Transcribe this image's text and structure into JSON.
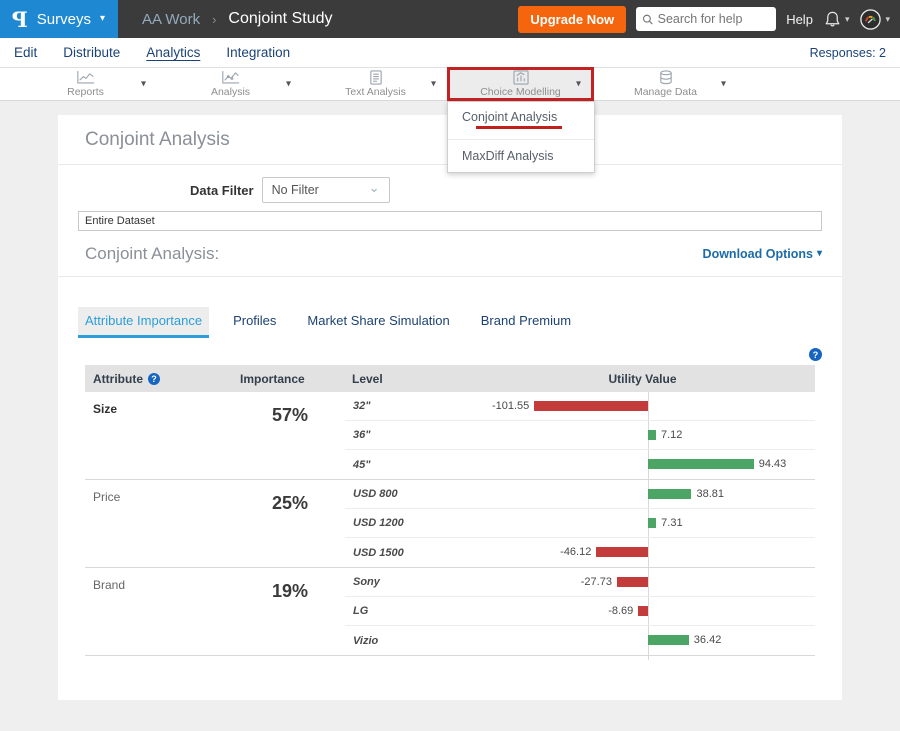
{
  "topbar": {
    "logo_text": "P",
    "product_label": "Surveys",
    "workspace": "AA Work",
    "breadcrumb_sep": "›",
    "study_title": "Conjoint Study",
    "upgrade_button": "Upgrade Now",
    "search_placeholder": "Search for help",
    "help_label": "Help",
    "brand_blue": "#1e88d2",
    "bar_bg": "#3b3b3b",
    "upgrade_orange": "#f4650e"
  },
  "nav": {
    "items": [
      "Edit",
      "Distribute",
      "Analytics",
      "Integration"
    ],
    "active_item": "Analytics",
    "responses_label": "Responses: 2"
  },
  "toolbar": {
    "items": [
      {
        "label": "Reports",
        "icon": "line-chart-icon"
      },
      {
        "label": "Analysis",
        "icon": "scatter-chart-icon"
      },
      {
        "label": "Text Analysis",
        "icon": "document-icon"
      },
      {
        "label": "Choice Modelling",
        "icon": "choice-chart-icon",
        "highlighted": true
      },
      {
        "label": "Manage Data",
        "icon": "database-icon"
      }
    ],
    "highlight_color": "#c32222"
  },
  "choice_menu": {
    "items": [
      {
        "label": "Conjoint Analysis",
        "underlined": true
      },
      {
        "label": "MaxDiff Analysis"
      }
    ],
    "underline_color": "#c0211c"
  },
  "content": {
    "page_heading": "Conjoint Analysis",
    "data_filter_label": "Data Filter",
    "data_filter_value": "No Filter",
    "dataset_bar": "Entire Dataset",
    "section_heading": "Conjoint Analysis:",
    "download_options": "Download Options",
    "tabs": [
      "Attribute Importance",
      "Profiles",
      "Market Share Simulation",
      "Brand Premium"
    ],
    "active_tab": "Attribute Importance"
  },
  "chart_data": {
    "type": "bar",
    "orientation": "horizontal",
    "zero_centered_axis": true,
    "title": "Attribute Importance",
    "columns": [
      "Attribute",
      "Importance",
      "Level",
      "Utility Value"
    ],
    "groups": [
      {
        "attribute": "Size",
        "importance": "57%",
        "levels": [
          {
            "label": "32\"",
            "value": -101.55
          },
          {
            "label": "36\"",
            "value": 7.12
          },
          {
            "label": "45\"",
            "value": 94.43
          }
        ]
      },
      {
        "attribute": "Price",
        "importance": "25%",
        "levels": [
          {
            "label": "USD 800",
            "value": 38.81
          },
          {
            "label": "USD 1200",
            "value": 7.31
          },
          {
            "label": "USD 1500",
            "value": -46.12
          }
        ]
      },
      {
        "attribute": "Brand",
        "importance": "19%",
        "levels": [
          {
            "label": "Sony",
            "value": -27.73
          },
          {
            "label": "LG",
            "value": -8.69
          },
          {
            "label": "Vizio",
            "value": 36.42
          }
        ]
      }
    ],
    "positive_color": "#4ca465",
    "negative_color": "#c43b3b"
  }
}
